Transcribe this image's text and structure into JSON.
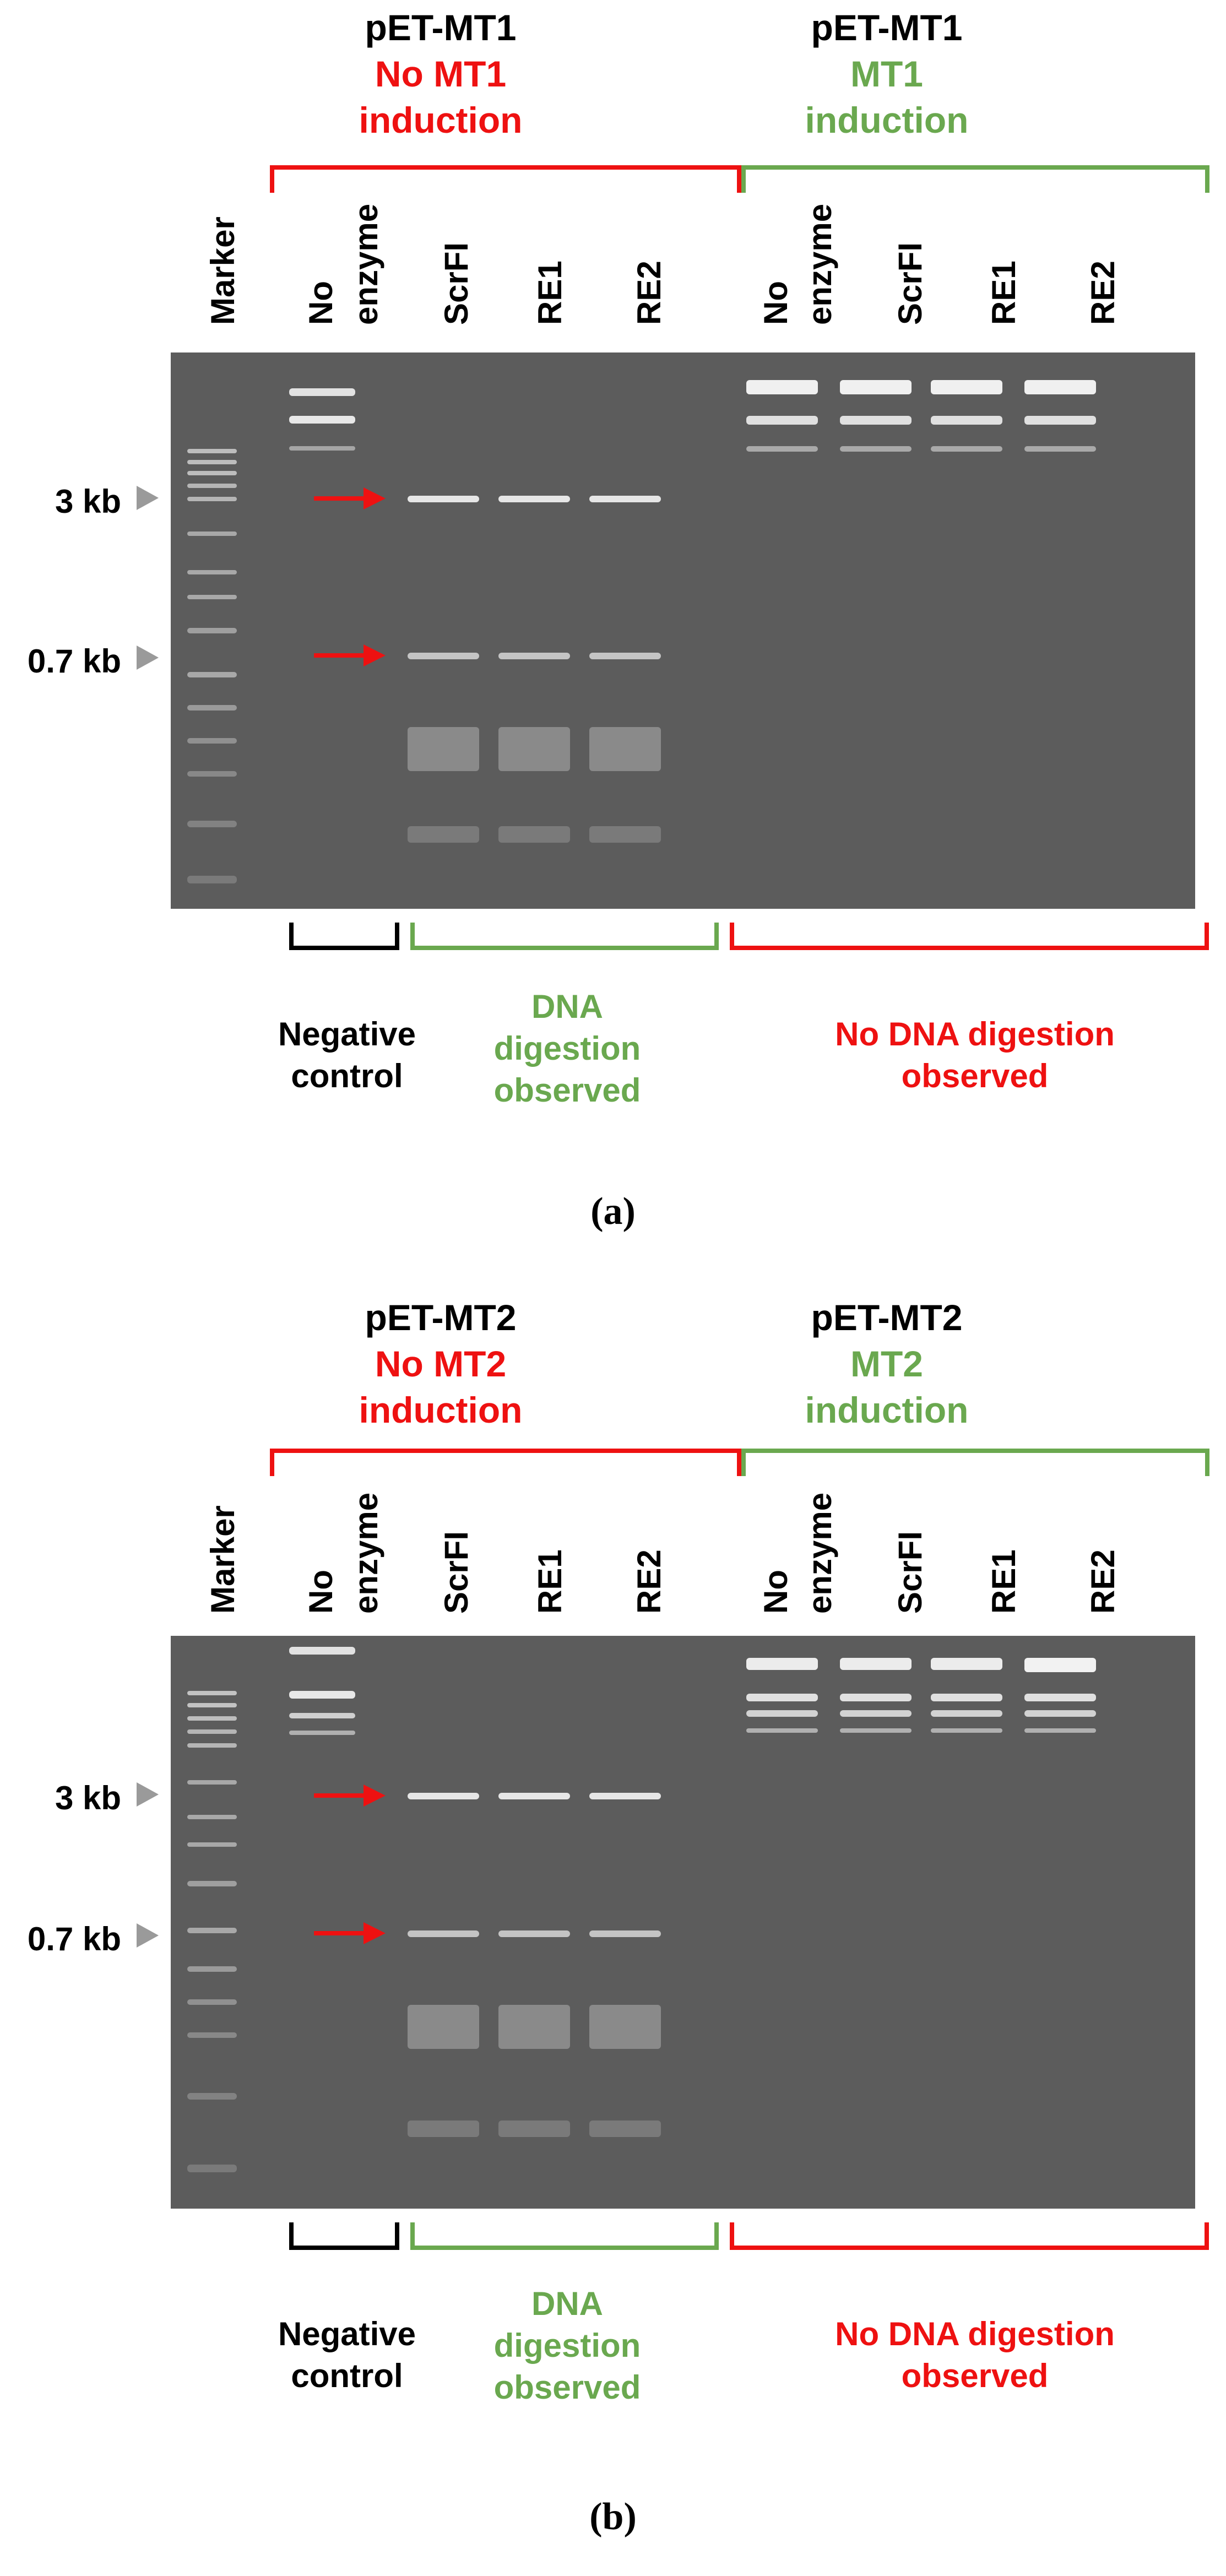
{
  "colors": {
    "red": "#ee1111",
    "green": "#6aa84f",
    "black": "#000000",
    "gel": "#5c5c5c"
  },
  "icons": {
    "size_marker": "gray-triangle-icon",
    "band_pointer": "red-arrow-icon"
  },
  "panels": [
    {
      "id": "a",
      "header_left": {
        "line1": "pET-MT1",
        "line2": "No MT1",
        "line3": "induction"
      },
      "header_right": {
        "line1": "pET-MT1",
        "line2": "MT1",
        "line3": "induction"
      },
      "lanes": [
        {
          "label1": "Marker",
          "label2": ""
        },
        {
          "label1": "No",
          "label2": "enzyme"
        },
        {
          "label1": "ScrFI",
          "label2": ""
        },
        {
          "label1": "RE1",
          "label2": ""
        },
        {
          "label1": "RE2",
          "label2": ""
        },
        {
          "label1": "No",
          "label2": "enzyme"
        },
        {
          "label1": "ScrFI",
          "label2": ""
        },
        {
          "label1": "RE1",
          "label2": ""
        },
        {
          "label1": "RE2",
          "label2": ""
        }
      ],
      "size_markers": [
        "3 kb",
        "0.7 kb"
      ],
      "footer": {
        "negative": {
          "line1": "Negative",
          "line2": "control"
        },
        "digest": {
          "line1": "DNA",
          "line2": "digestion",
          "line3": "observed"
        },
        "nodigest": {
          "line1": "No DNA digestion",
          "line2": "observed"
        }
      },
      "caption": "(a)"
    },
    {
      "id": "b",
      "header_left": {
        "line1": "pET-MT2",
        "line2": "No MT2",
        "line3": "induction"
      },
      "header_right": {
        "line1": "pET-MT2",
        "line2": "MT2",
        "line3": "induction"
      },
      "lanes": [
        {
          "label1": "Marker",
          "label2": ""
        },
        {
          "label1": "No",
          "label2": "enzyme"
        },
        {
          "label1": "ScrFI",
          "label2": ""
        },
        {
          "label1": "RE1",
          "label2": ""
        },
        {
          "label1": "RE2",
          "label2": ""
        },
        {
          "label1": "No",
          "label2": "enzyme"
        },
        {
          "label1": "ScrFI",
          "label2": ""
        },
        {
          "label1": "RE1",
          "label2": ""
        },
        {
          "label1": "RE2",
          "label2": ""
        }
      ],
      "size_markers": [
        "3 kb",
        "0.7 kb"
      ],
      "footer": {
        "negative": {
          "line1": "Negative",
          "line2": "control"
        },
        "digest": {
          "line1": "DNA",
          "line2": "digestion",
          "line3": "observed"
        },
        "nodigest": {
          "line1": "No DNA digestion",
          "line2": "observed"
        }
      },
      "caption": "(b)"
    }
  ]
}
